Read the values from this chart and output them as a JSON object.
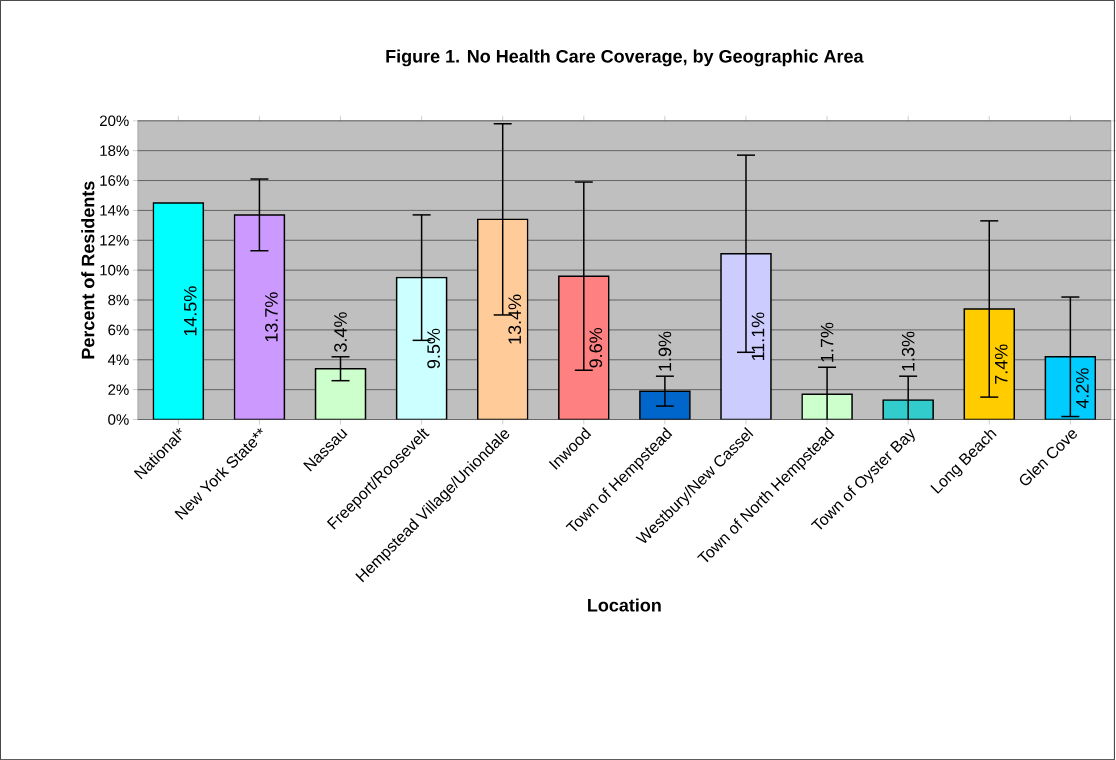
{
  "chart_data": {
    "type": "bar",
    "title": "Figure 1. No Health Care Coverage, by Geographic Area",
    "xlabel": "Location",
    "ylabel": "Percent of Residents",
    "categories": [
      "National*",
      "New York State**",
      "Nassau",
      "Freeport/Roosevelt",
      "Hempstead Village/Uniondale",
      "Inwood",
      "Town of Hempstead",
      "Westbury/New Cassel",
      "Town of North Hempstead",
      "Town of Oyster Bay",
      "Long Beach",
      "Glen Cove"
    ],
    "values": [
      14.5,
      13.7,
      3.4,
      9.5,
      13.4,
      9.6,
      1.9,
      11.1,
      1.7,
      1.3,
      7.4,
      4.2
    ],
    "value_labels": [
      "14.5%",
      "13.7%",
      "3.4%",
      "9.5%",
      "13.4%",
      "9.6%",
      "1.9%",
      "11.1%",
      "1.7%",
      "1.3%",
      "7.4%",
      "4.2%"
    ],
    "errors": [
      null,
      2.4,
      0.8,
      4.2,
      6.4,
      6.3,
      1.0,
      6.6,
      1.8,
      1.6,
      5.9,
      4.0
    ],
    "colors": [
      "#00ffff",
      "#cc99ff",
      "#ccffcc",
      "#ccffff",
      "#ffcc99",
      "#ff8080",
      "#0066cc",
      "#ccccff",
      "#ccffcc",
      "#33cccc",
      "#ffcc00",
      "#00ccff"
    ],
    "ylim": [
      0,
      20
    ],
    "yticks": [
      {
        "value": 0,
        "label": "0%"
      },
      {
        "value": 2,
        "label": "2%"
      },
      {
        "value": 4,
        "label": "4%"
      },
      {
        "value": 6,
        "label": "6%"
      },
      {
        "value": 8,
        "label": "8%"
      },
      {
        "value": 10,
        "label": "10%"
      },
      {
        "value": 12,
        "label": "12%"
      },
      {
        "value": 14,
        "label": "14%"
      },
      {
        "value": 16,
        "label": "16%"
      },
      {
        "value": 18,
        "label": "18%"
      },
      {
        "value": 20,
        "label": "20%"
      }
    ],
    "grid": "y"
  }
}
